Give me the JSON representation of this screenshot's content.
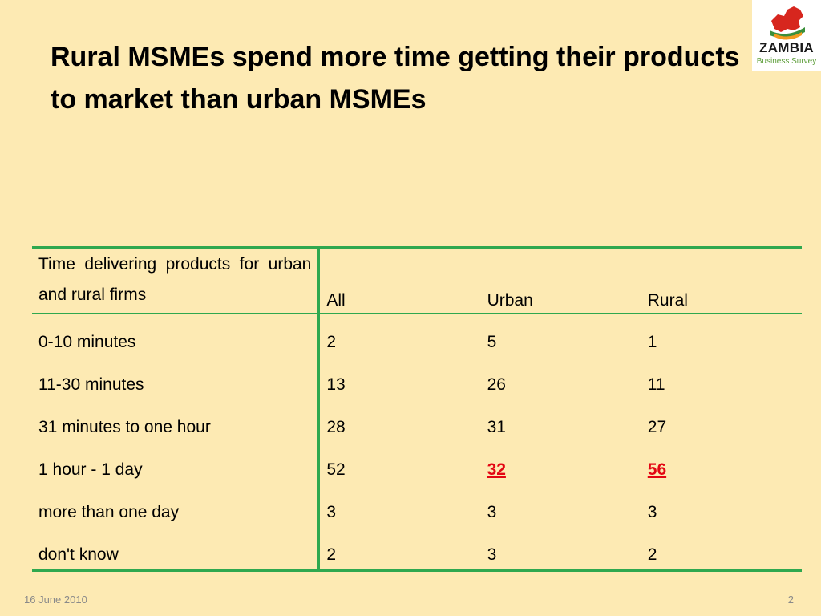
{
  "slide": {
    "title": "Rural MSMEs spend more time getting their products to market than urban MSMEs",
    "footer_date": "16 June 2010",
    "page_number": "2"
  },
  "logo": {
    "word": "ZAMBIA",
    "subtitle": "Business Survey",
    "colors": {
      "map_red": "#d7261e",
      "map_green": "#3a8f3a",
      "map_orange": "#f29a1e"
    }
  },
  "table": {
    "header_label": "Time delivering products for urban and rural firms",
    "columns": [
      "All",
      "Urban",
      "Rural"
    ],
    "rows": [
      {
        "label": "0-10 minutes",
        "values": [
          "2",
          "5",
          "1"
        ]
      },
      {
        "label": "11-30 minutes",
        "values": [
          "13",
          "26",
          "11"
        ]
      },
      {
        "label": "31 minutes to one hour",
        "values": [
          "28",
          "31",
          "27"
        ]
      },
      {
        "label": "1 hour - 1 day",
        "values": [
          "52",
          "32",
          "56"
        ]
      },
      {
        "label": "more than one day",
        "values": [
          "3",
          "3",
          "3"
        ]
      },
      {
        "label": "don't know",
        "values": [
          "2",
          "3",
          "2"
        ]
      }
    ],
    "border_color": "#2fa84f",
    "highlight_color": "#e30613"
  }
}
